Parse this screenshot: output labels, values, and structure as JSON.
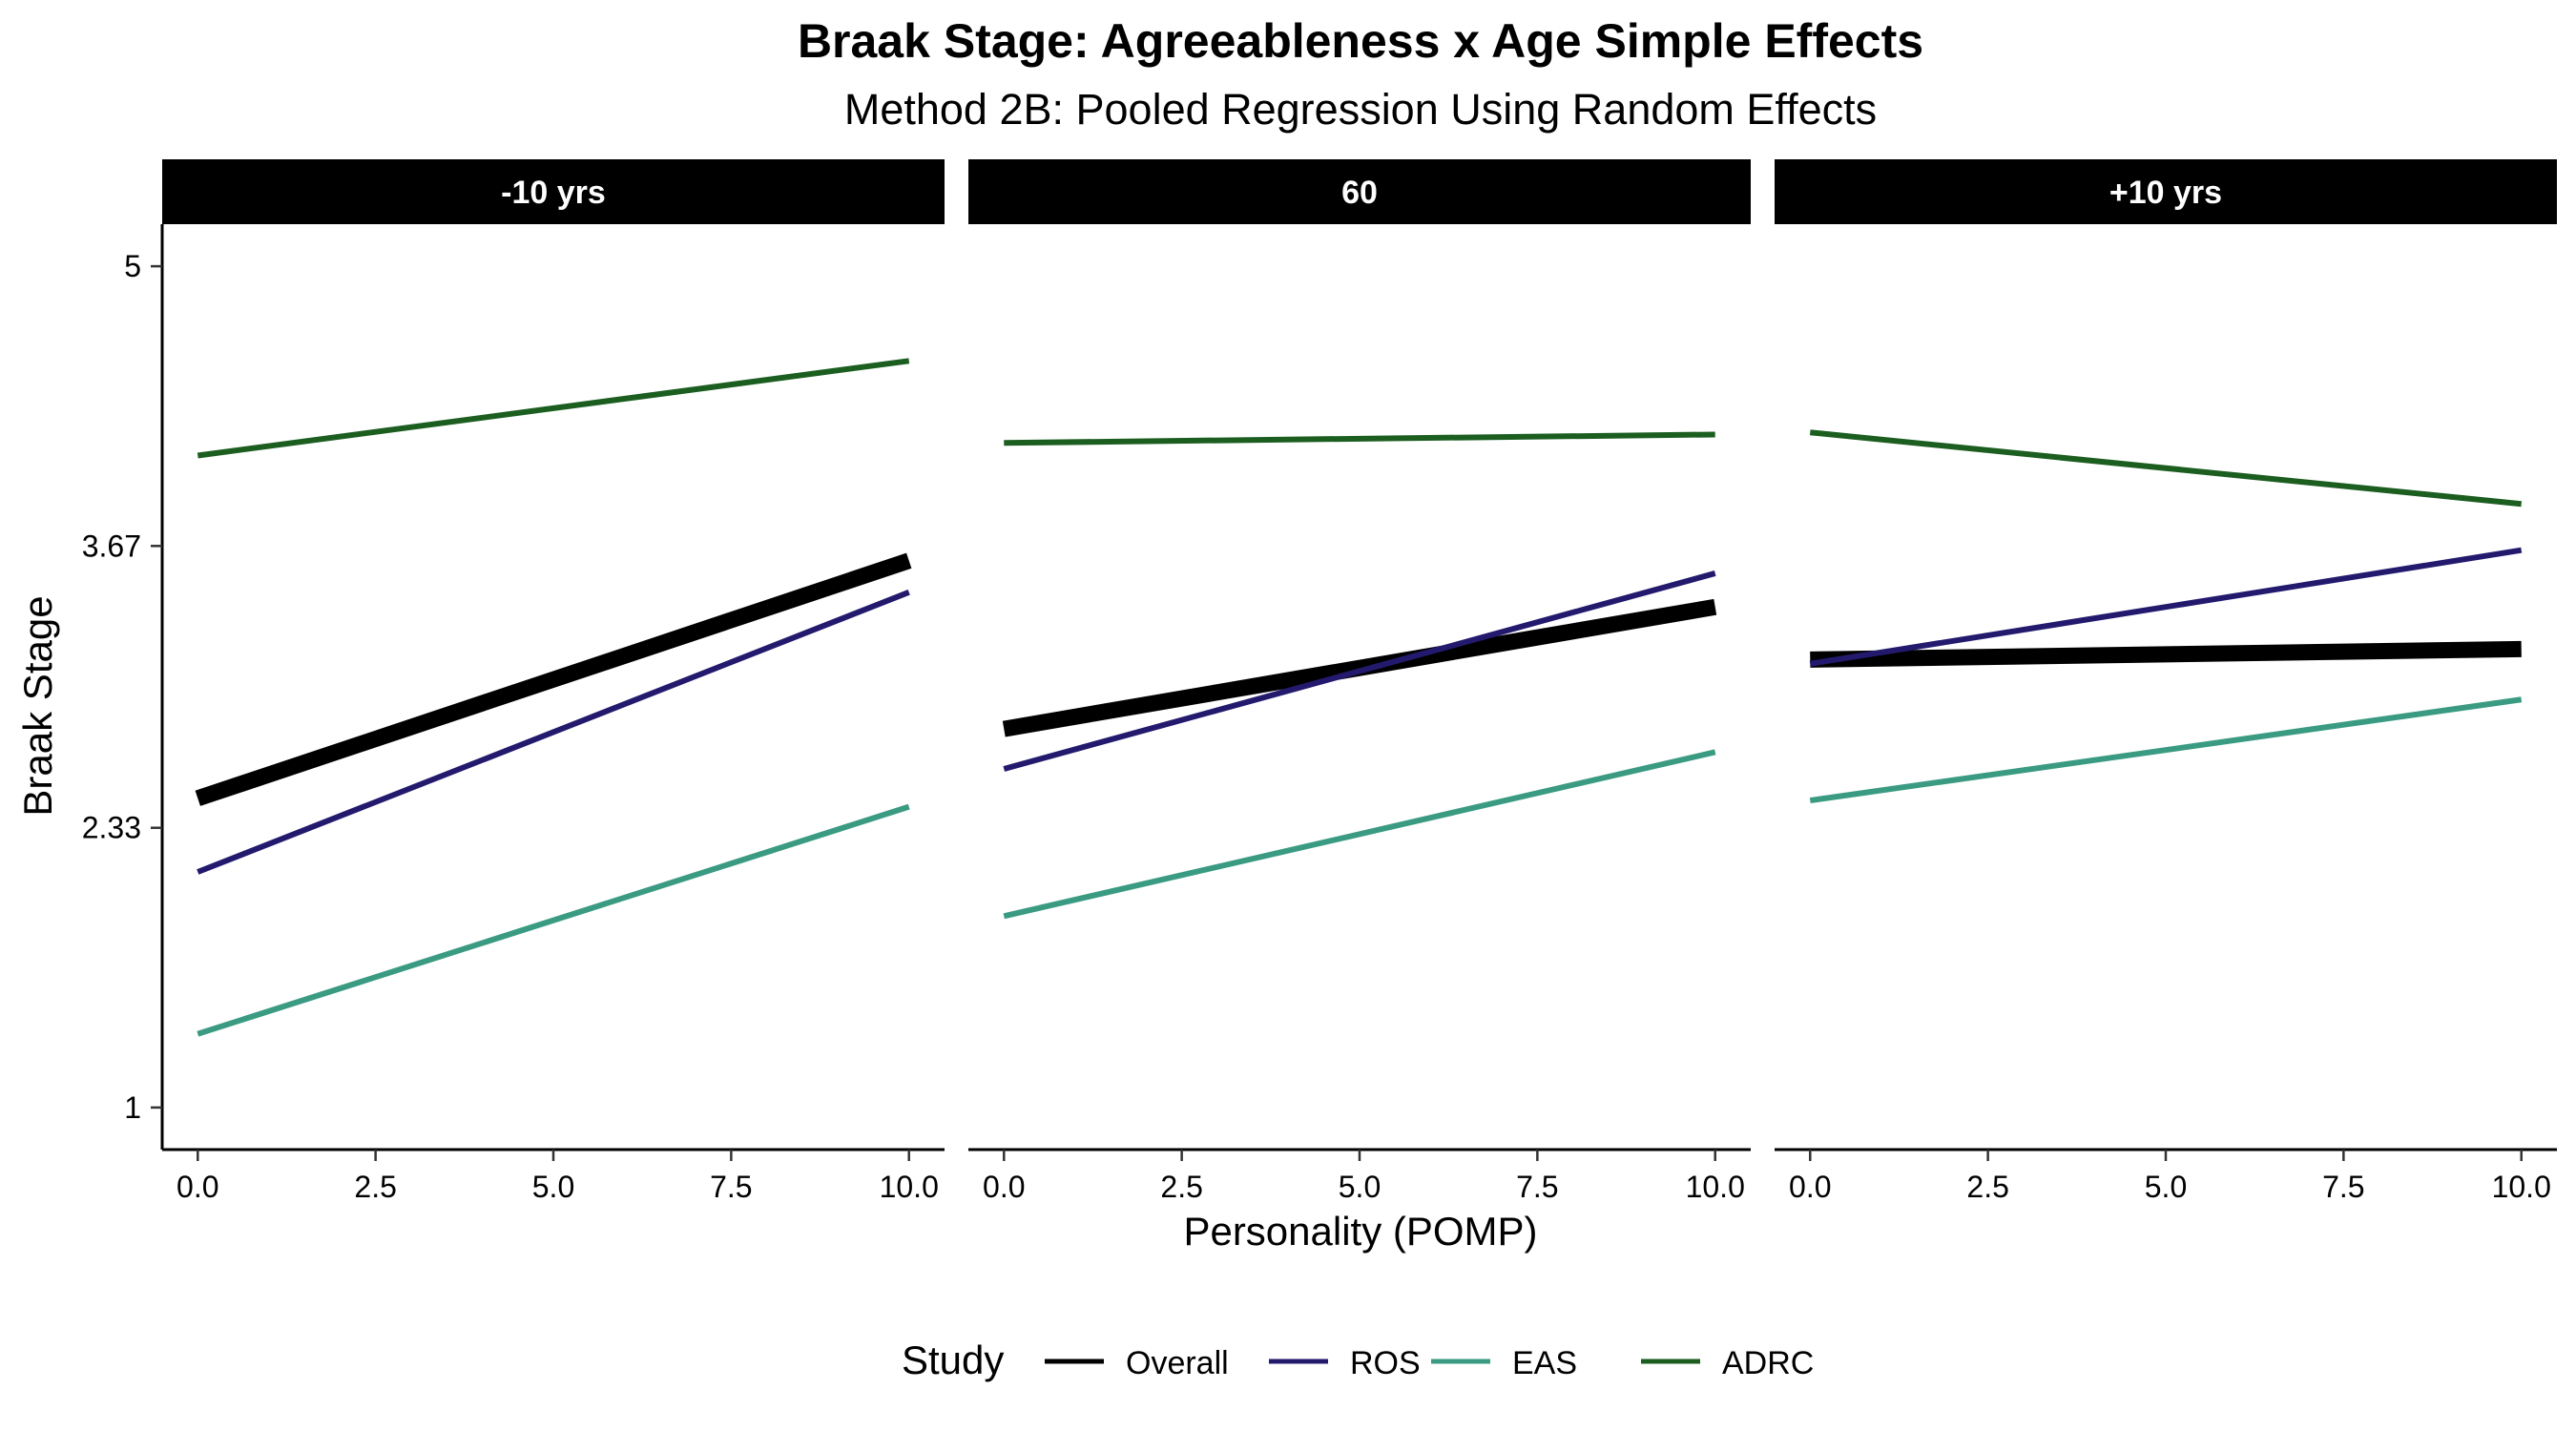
{
  "chart_data": {
    "type": "line",
    "title": "Braak Stage: Agreeableness x Age Simple Effects",
    "subtitle": "Method 2B: Pooled Regression Using Random Effects",
    "xlabel": "Personality (POMP)",
    "ylabel": "Braak Stage",
    "xlim": [
      -0.5,
      10.5
    ],
    "ylim": [
      0.8,
      5.2
    ],
    "x_ticks": [
      0,
      2.5,
      5,
      7.5,
      10
    ],
    "x_tick_labels": [
      "0.0",
      "2.5",
      "5.0",
      "7.5",
      "10.0"
    ],
    "y_ticks": [
      1,
      2.33,
      3.67,
      5
    ],
    "y_tick_labels": [
      "1",
      "2.33",
      "3.67",
      "5"
    ],
    "legend": {
      "title": "Study",
      "position": "bottom",
      "entries": [
        "Overall",
        "ROS",
        "EAS",
        "ADRC"
      ]
    },
    "series_styles": [
      {
        "name": "Overall",
        "color": "#000000",
        "width": "thick"
      },
      {
        "name": "ROS",
        "color": "#231A6E",
        "width": "thin"
      },
      {
        "name": "EAS",
        "color": "#3A9B82",
        "width": "thin"
      },
      {
        "name": "ADRC",
        "color": "#1B5E20",
        "width": "thin"
      }
    ],
    "facets": [
      {
        "label": "-10 yrs",
        "series": [
          {
            "name": "Overall",
            "x": [
              0,
              10
            ],
            "y": [
              2.47,
              3.6
            ]
          },
          {
            "name": "ROS",
            "x": [
              0,
              10
            ],
            "y": [
              2.12,
              3.45
            ]
          },
          {
            "name": "EAS",
            "x": [
              0,
              10
            ],
            "y": [
              1.35,
              2.43
            ]
          },
          {
            "name": "ADRC",
            "x": [
              0,
              10
            ],
            "y": [
              4.1,
              4.55
            ]
          }
        ]
      },
      {
        "label": "60",
        "series": [
          {
            "name": "Overall",
            "x": [
              0,
              10
            ],
            "y": [
              2.8,
              3.38
            ]
          },
          {
            "name": "ROS",
            "x": [
              0,
              10
            ],
            "y": [
              2.61,
              3.54
            ]
          },
          {
            "name": "EAS",
            "x": [
              0,
              10
            ],
            "y": [
              1.91,
              2.69
            ]
          },
          {
            "name": "ADRC",
            "x": [
              0,
              10
            ],
            "y": [
              4.16,
              4.2
            ]
          }
        ]
      },
      {
        "label": "+10 yrs",
        "series": [
          {
            "name": "Overall",
            "x": [
              0,
              10
            ],
            "y": [
              3.13,
              3.18
            ]
          },
          {
            "name": "ROS",
            "x": [
              0,
              10
            ],
            "y": [
              3.11,
              3.65
            ]
          },
          {
            "name": "EAS",
            "x": [
              0,
              10
            ],
            "y": [
              2.46,
              2.94
            ]
          },
          {
            "name": "ADRC",
            "x": [
              0,
              10
            ],
            "y": [
              4.21,
              3.87
            ]
          }
        ]
      }
    ]
  }
}
